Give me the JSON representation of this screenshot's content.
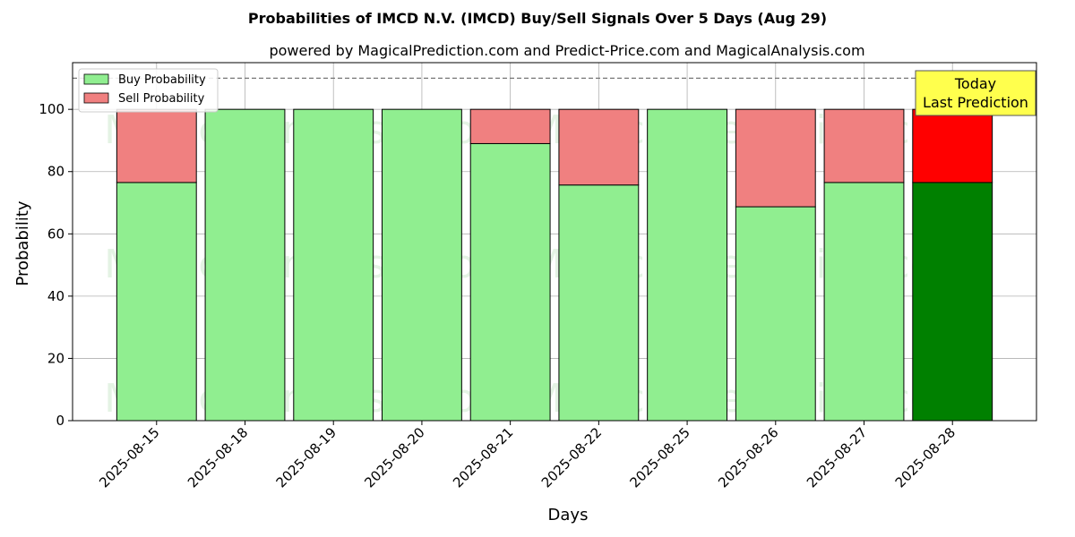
{
  "chart_data": {
    "type": "bar",
    "stacked": true,
    "title": "Probabilities of IMCD N.V. (IMCD) Buy/Sell Signals Over 5 Days (Aug 29)",
    "subtitle": "powered by MagicalPrediction.com and Predict-Price.com and MagicalAnalysis.com",
    "xlabel": "Days",
    "ylabel": "Probability",
    "ylim": [
      0,
      115
    ],
    "yticks": [
      0,
      20,
      40,
      60,
      80,
      100
    ],
    "reference_line": 110,
    "grid": true,
    "legend_position": "top-left",
    "categories": [
      "2025-08-15",
      "2025-08-18",
      "2025-08-19",
      "2025-08-20",
      "2025-08-21",
      "2025-08-22",
      "2025-08-25",
      "2025-08-26",
      "2025-08-27",
      "2025-08-28"
    ],
    "series": [
      {
        "name": "Buy Probability",
        "values": [
          76.5,
          100,
          100,
          100,
          89,
          75.7,
          100,
          68.7,
          76.5,
          76.5
        ],
        "color": "#90ee90",
        "highlight_color": "#008000"
      },
      {
        "name": "Sell Probability",
        "values": [
          23.5,
          0,
          0,
          0,
          11,
          24.3,
          0,
          31.3,
          23.5,
          23.5
        ],
        "color": "#f08080",
        "highlight_color": "#ff0000"
      }
    ],
    "highlight_index": 9,
    "annotation": {
      "line1": "Today",
      "line2": "Last Prediction",
      "bg_color": "#ffff4d"
    },
    "watermarks": [
      "MagicalAnalysis.com",
      "MagicalPrediction.com"
    ]
  }
}
